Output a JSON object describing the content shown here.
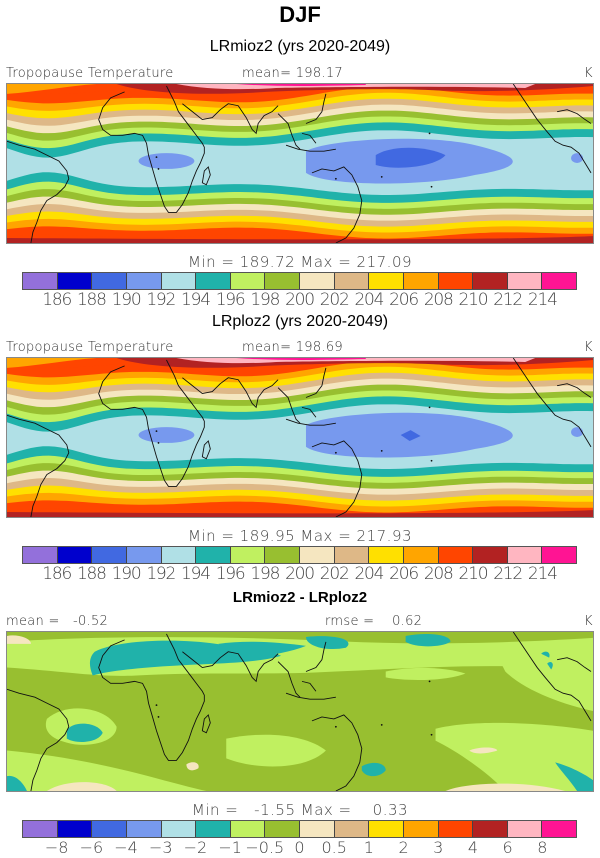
{
  "figure": {
    "title": "DJF"
  },
  "palette": [
    "#9370db",
    "#0000cd",
    "#4169e1",
    "#7799ee",
    "#b0e0e6",
    "#20b2aa",
    "#c0f060",
    "#98bf30",
    "#f5e6c0",
    "#deb887",
    "#ffe000",
    "#ffa500",
    "#ff4500",
    "#b22222",
    "#ffb6c1",
    "#ff1493"
  ],
  "chart_data": [
    {
      "type": "heatmap",
      "title": "LRmioz2 (yrs 2020-2049)",
      "variable": "Tropopause Temperature",
      "units": "K",
      "mean_label": "mean= 198.17",
      "mean": 198.17,
      "min": 189.72,
      "max": 217.09,
      "minmax_label": "Min = 189.72 Max = 217.09",
      "colorbar_levels": [
        "186",
        "188",
        "190",
        "192",
        "194",
        "196",
        "198",
        "200",
        "202",
        "204",
        "206",
        "208",
        "210",
        "212",
        "214"
      ],
      "map_region": "Tropics/subtropics, Atlantic to eastern Pacific (South America, Africa, Asia, Australia, Central America)"
    },
    {
      "type": "heatmap",
      "title": "LRploz2 (yrs 2020-2049)",
      "variable": "Tropopause Temperature",
      "units": "K",
      "mean_label": "mean= 198.69",
      "mean": 198.69,
      "min": 189.95,
      "max": 217.93,
      "minmax_label": "Min = 189.95 Max = 217.93",
      "colorbar_levels": [
        "186",
        "188",
        "190",
        "192",
        "194",
        "196",
        "198",
        "200",
        "202",
        "204",
        "206",
        "208",
        "210",
        "212",
        "214"
      ],
      "map_region": "Tropics/subtropics, Atlantic to eastern Pacific"
    },
    {
      "type": "heatmap",
      "title": "LRmioz2 - LRploz2",
      "units": "K",
      "mean_label": "mean =   -0.52",
      "mean": -0.52,
      "rmse_label": "rmse =    0.62",
      "rmse": 0.62,
      "min": -1.55,
      "max": 0.33,
      "minmax_label": "Min =   -1.55 Max =    0.33",
      "colorbar_levels": [
        "-8",
        "-6",
        "-4",
        "-3",
        "-2",
        "-1",
        "-0.5",
        "0",
        "0.5",
        "1",
        "2",
        "3",
        "4",
        "6",
        "8"
      ],
      "map_region": "Tropics/subtropics, Atlantic to eastern Pacific"
    }
  ]
}
